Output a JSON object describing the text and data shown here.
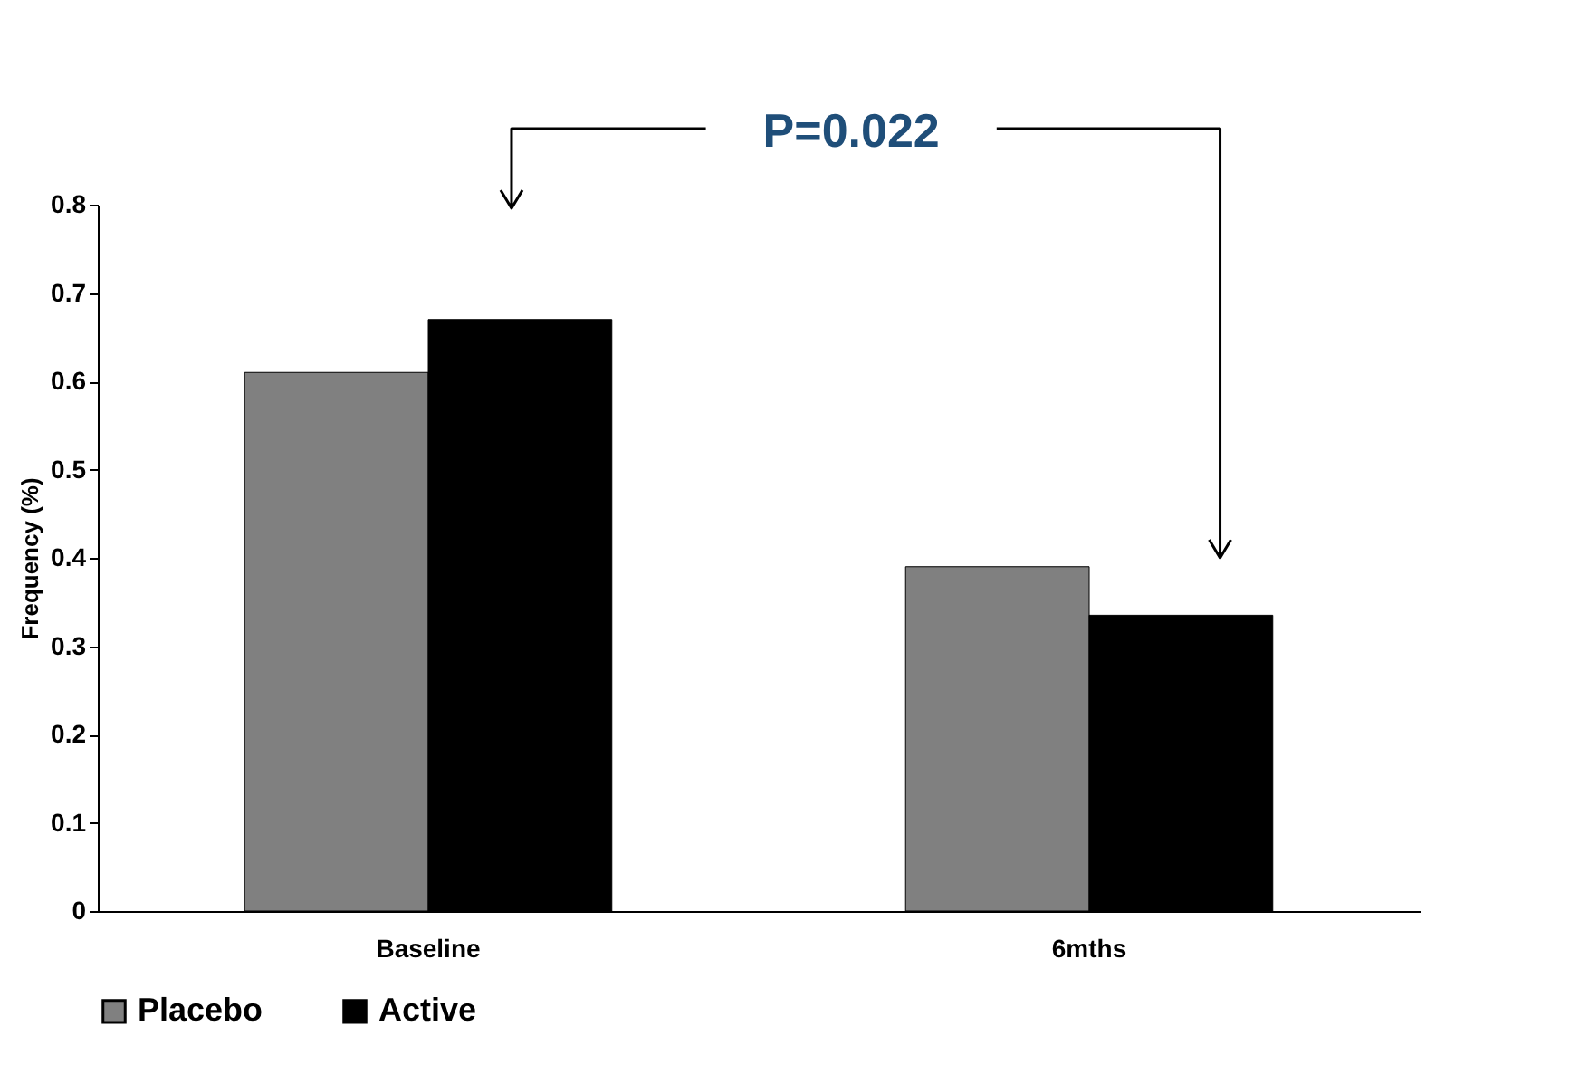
{
  "chart_data": {
    "type": "bar",
    "ylabel": "Frequency (%)",
    "categories": [
      "Baseline",
      "6mths"
    ],
    "series": [
      {
        "name": "Placebo",
        "color": "#808080",
        "values": [
          0.61,
          0.39
        ]
      },
      {
        "name": "Active",
        "color": "#000000",
        "values": [
          0.67,
          0.335
        ]
      }
    ],
    "ylim": [
      0,
      0.8
    ],
    "yticks": [
      0,
      0.1,
      0.2,
      0.3,
      0.4,
      0.5,
      0.6,
      0.7,
      0.8
    ],
    "grid": false,
    "legend": "bottom",
    "annotations": [
      "P=0.022"
    ]
  }
}
